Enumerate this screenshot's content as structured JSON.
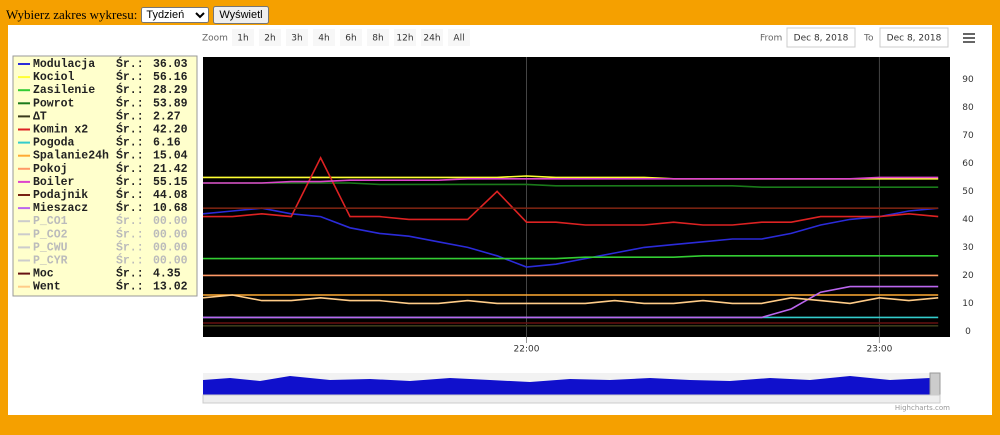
{
  "controls": {
    "label": "Wybierz zakres wykresu:",
    "select": "Tydzień",
    "button": "Wyświetl"
  },
  "range_selector": {
    "zoom_label": "Zoom",
    "buttons": [
      "1h",
      "2h",
      "3h",
      "4h",
      "6h",
      "8h",
      "12h",
      "24h",
      "All"
    ],
    "from_label": "From",
    "from": "Dec 8, 2018",
    "to_label": "To",
    "to": "Dec 8, 2018"
  },
  "credits": "Highcharts.com",
  "chart_data": {
    "type": "line",
    "avg_label": "Śr.:",
    "x": [
      "21:05",
      "21:10",
      "21:15",
      "21:20",
      "21:25",
      "21:30",
      "21:35",
      "21:40",
      "21:45",
      "21:50",
      "21:55",
      "22:00",
      "22:05",
      "22:10",
      "22:15",
      "22:20",
      "22:25",
      "22:30",
      "22:35",
      "22:40",
      "22:45",
      "22:50",
      "22:55",
      "23:00",
      "23:05",
      "23:10"
    ],
    "xlim": [
      "21:05",
      "23:12"
    ],
    "xticks": [
      "22:00",
      "23:00"
    ],
    "ylim": [
      -2,
      98
    ],
    "yticks": [
      0,
      10,
      20,
      30,
      40,
      50,
      60,
      70,
      80,
      90
    ],
    "series": [
      {
        "name": "Modulacja",
        "avg": "36.03",
        "color": "#2b2bd9",
        "values": [
          42,
          43,
          44,
          42,
          41,
          37,
          35,
          34,
          32,
          30,
          27,
          23,
          24,
          26,
          28,
          30,
          31,
          32,
          33,
          33,
          35,
          38,
          40,
          41,
          43,
          44
        ]
      },
      {
        "name": "Kociol",
        "avg": "56.16",
        "color": "#ffff33",
        "values": [
          55,
          55,
          55,
          55,
          55,
          55,
          55,
          55,
          55,
          55,
          55,
          55.5,
          55,
          55,
          55,
          55,
          54.5,
          54.5,
          54.5,
          54.5,
          54.5,
          54.5,
          54.5,
          54.5,
          54.5,
          54.5
        ]
      },
      {
        "name": "Zasilenie",
        "avg": "28.29",
        "color": "#33cc33",
        "values": [
          26,
          26,
          26,
          26,
          26,
          26,
          26,
          26,
          26,
          26,
          26,
          26,
          26,
          26.5,
          26.5,
          26.5,
          26.5,
          27,
          27,
          27,
          27,
          27,
          27,
          27,
          27,
          27
        ]
      },
      {
        "name": "Powrot",
        "avg": "53.89",
        "color": "#1a7a1a",
        "values": [
          53,
          53,
          53,
          53,
          53,
          53,
          52.5,
          52.5,
          52.5,
          52.5,
          52.5,
          52.5,
          52,
          52,
          52,
          52,
          52,
          52,
          52,
          51.5,
          51.5,
          51.5,
          51.5,
          51.5,
          51.5,
          51.5
        ]
      },
      {
        "name": "ΔT",
        "avg": "2.27",
        "color": "#3a3a1a",
        "values": [
          2,
          2,
          2,
          2,
          2,
          2,
          2,
          2,
          2,
          2,
          2,
          2,
          2,
          2,
          2,
          2,
          2,
          2,
          2,
          2,
          2,
          2,
          2,
          2,
          2,
          2
        ]
      },
      {
        "name": "Komin x2",
        "avg": "42.20",
        "color": "#dd2222",
        "values": [
          41,
          41,
          42,
          41,
          62,
          41,
          41,
          40,
          40,
          40,
          50,
          39,
          39,
          38,
          38,
          38,
          39,
          38,
          38,
          39,
          39,
          41,
          41,
          41,
          42,
          41
        ]
      },
      {
        "name": "Pogoda",
        "avg": "6.16",
        "color": "#33cccc",
        "values": [
          5,
          5,
          5,
          5,
          5,
          5,
          5,
          5,
          5,
          5,
          5,
          5,
          5,
          5,
          5,
          5,
          5,
          5,
          5,
          5,
          5,
          5,
          5,
          5,
          5,
          5
        ]
      },
      {
        "name": "Spalanie24h",
        "avg": "15.04",
        "color": "#ffaa33",
        "values": [
          13,
          13,
          13,
          13,
          13,
          13,
          13,
          13,
          13,
          13,
          13,
          13,
          13,
          13,
          13,
          13,
          13,
          13,
          13,
          13,
          13,
          13,
          13,
          13,
          13,
          13
        ]
      },
      {
        "name": "Pokoj",
        "avg": "21.42",
        "color": "#ff9966",
        "values": [
          20,
          20,
          20,
          20,
          20,
          20,
          20,
          20,
          20,
          20,
          20,
          20,
          20,
          20,
          20,
          20,
          20,
          20,
          20,
          20,
          20,
          20,
          20,
          20,
          20,
          20
        ]
      },
      {
        "name": "Boiler",
        "avg": "55.15",
        "color": "#dd44cc",
        "values": [
          53,
          53,
          53,
          53.5,
          53.5,
          54,
          54,
          54,
          54,
          54.5,
          54.5,
          54.5,
          54.5,
          54.5,
          54.5,
          54.5,
          54.5,
          54.5,
          54.5,
          54.5,
          54.5,
          54.5,
          54.5,
          55,
          55,
          55
        ]
      },
      {
        "name": "Podajnik",
        "avg": "44.08",
        "color": "#772211",
        "values": [
          44,
          44,
          44,
          44,
          44,
          44,
          44,
          44,
          44,
          44,
          44,
          44,
          44,
          44,
          44,
          44,
          44,
          44,
          44,
          44,
          44,
          44,
          44,
          44,
          44,
          44
        ]
      },
      {
        "name": "Mieszacz",
        "avg": "10.68",
        "color": "#bb66ee",
        "values": [
          5,
          5,
          5,
          5,
          5,
          5,
          5,
          5,
          5,
          5,
          5,
          5,
          5,
          5,
          5,
          5,
          5,
          5,
          5,
          5,
          8,
          14,
          16,
          16,
          16,
          16
        ]
      },
      {
        "name": "P_CO1",
        "avg": "00.00",
        "color": "#cccccc",
        "visible": false
      },
      {
        "name": "P_CO2",
        "avg": "00.00",
        "color": "#cccccc",
        "visible": false
      },
      {
        "name": "P_CWU",
        "avg": "00.00",
        "color": "#cccccc",
        "visible": false
      },
      {
        "name": "P_CYR",
        "avg": "00.00",
        "color": "#cccccc",
        "visible": false
      },
      {
        "name": "Moc",
        "avg": "4.35",
        "color": "#661111",
        "values": [
          3,
          3,
          3,
          3,
          3,
          3,
          3,
          3,
          3,
          3,
          3,
          3,
          3,
          3,
          3,
          3,
          3,
          3,
          3,
          3,
          3,
          3,
          3,
          3,
          3,
          3
        ]
      },
      {
        "name": "Went",
        "avg": "13.02",
        "color": "#ffcc88",
        "values": [
          12,
          13,
          11,
          11,
          12,
          11,
          11,
          10,
          10,
          11,
          10,
          10,
          10,
          10,
          11,
          10,
          10,
          11,
          10,
          10,
          12,
          11,
          10,
          12,
          11,
          12
        ]
      }
    ]
  }
}
